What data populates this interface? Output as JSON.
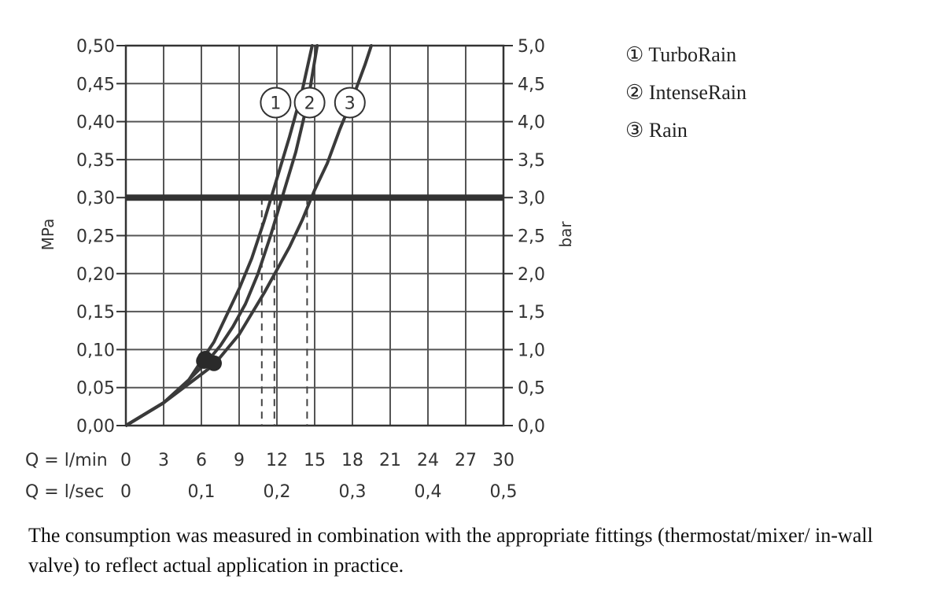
{
  "chart_data": {
    "type": "line",
    "x_label_lmin": "Q = l/min",
    "x_label_lsec": "Q = l/sec",
    "y_label_left": "MPa",
    "y_label_right": "bar",
    "x_ticks_lmin": [
      "0",
      "3",
      "6",
      "9",
      "12",
      "15",
      "18",
      "21",
      "24",
      "27",
      "30"
    ],
    "x_ticks_lsec": [
      "0",
      "0,1",
      "0,2",
      "0,3",
      "0,4",
      "0,5"
    ],
    "y_ticks_left": [
      "0,00",
      "0,05",
      "0,10",
      "0,15",
      "0,20",
      "0,25",
      "0,30",
      "0,35",
      "0,40",
      "0,45",
      "0,50"
    ],
    "y_ticks_right": [
      "0,0",
      "0,5",
      "1,0",
      "1,5",
      "2,0",
      "2,5",
      "3,0",
      "3,5",
      "4,0",
      "4,5",
      "5,0"
    ],
    "xlim": [
      0,
      30
    ],
    "ylim": [
      0,
      0.5
    ],
    "grid": true,
    "reference_line_y": 0.3,
    "series": [
      {
        "name": "TurboRain",
        "label": "1",
        "x": [
          0,
          3,
          5,
          6,
          7,
          8,
          9,
          10,
          11,
          12,
          13,
          14,
          14.8
        ],
        "y": [
          0,
          0.03,
          0.06,
          0.085,
          0.11,
          0.145,
          0.18,
          0.22,
          0.27,
          0.325,
          0.38,
          0.44,
          0.5
        ]
      },
      {
        "name": "IntenseRain",
        "label": "2",
        "x": [
          0,
          3,
          5,
          6.5,
          7.5,
          8.5,
          9.5,
          10.5,
          11.5,
          12.5,
          13.5,
          14.5,
          15.2
        ],
        "y": [
          0,
          0.03,
          0.06,
          0.085,
          0.105,
          0.13,
          0.16,
          0.2,
          0.25,
          0.305,
          0.36,
          0.43,
          0.5
        ]
      },
      {
        "name": "Rain",
        "label": "3",
        "x": [
          0,
          3,
          5,
          7,
          9,
          11,
          12,
          13,
          14,
          15,
          16,
          17,
          18,
          19,
          19.5
        ],
        "y": [
          0,
          0.03,
          0.055,
          0.08,
          0.12,
          0.175,
          0.205,
          0.235,
          0.27,
          0.31,
          0.345,
          0.39,
          0.43,
          0.475,
          0.5
        ]
      }
    ],
    "markers": [
      {
        "series": "TurboRain",
        "x": 6.2,
        "y": 0.085
      },
      {
        "series": "IntenseRain",
        "x": 6.3,
        "y": 0.088
      },
      {
        "series": "Rain",
        "x": 7.0,
        "y": 0.082
      }
    ],
    "dashed_drops": [
      {
        "series": "TurboRain",
        "x": 10.8,
        "y": 0.3
      },
      {
        "series": "IntenseRain",
        "x": 11.8,
        "y": 0.3
      },
      {
        "series": "Rain",
        "x": 14.4,
        "y": 0.3
      }
    ],
    "curve_labels": [
      {
        "text": "1",
        "x": 11.9,
        "y": 0.425
      },
      {
        "text": "2",
        "x": 14.6,
        "y": 0.425
      },
      {
        "text": "3",
        "x": 17.8,
        "y": 0.425
      }
    ]
  },
  "legend": [
    {
      "number": "①",
      "label": "TurboRain"
    },
    {
      "number": "②",
      "label": "IntenseRain"
    },
    {
      "number": "③",
      "label": "Rain"
    }
  ],
  "note": "The consumption was measured in combination with the appropriate fittings (thermostat/mixer/ in-wall valve) to reflect actual application in practice."
}
